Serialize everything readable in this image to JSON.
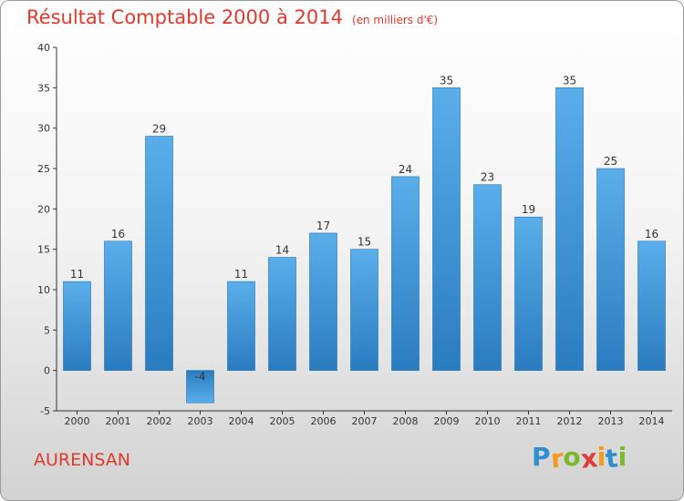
{
  "chart_data": {
    "type": "bar",
    "title": "Résultat Comptable 2000 à 2014",
    "subtitle": "(en milliers d'€)",
    "categories": [
      "2000",
      "2001",
      "2002",
      "2003",
      "2004",
      "2005",
      "2006",
      "2007",
      "2008",
      "2009",
      "2010",
      "2011",
      "2012",
      "2013",
      "2014"
    ],
    "values": [
      11,
      16,
      29,
      -4,
      11,
      14,
      17,
      15,
      24,
      35,
      23,
      19,
      35,
      25,
      16
    ],
    "ylim": [
      -5,
      40
    ],
    "yticks": [
      -5,
      0,
      5,
      10,
      15,
      20,
      25,
      30,
      35,
      40
    ],
    "grid": false,
    "xlabel": "",
    "ylabel": "",
    "bar_color": "#3a8fd4"
  },
  "footer": {
    "city": "AURENSAN",
    "logo_letters": [
      "P",
      "r",
      "o",
      "x",
      "i",
      "t",
      "i"
    ],
    "logo_colors": [
      "#2f8ed0",
      "#f29b1c",
      "#7ab929",
      "#e23b3b",
      "#f29b1c",
      "#2f8ed0",
      "#7ab929"
    ]
  },
  "colors": {
    "accent": "#e0392b",
    "axis": "#333333"
  }
}
